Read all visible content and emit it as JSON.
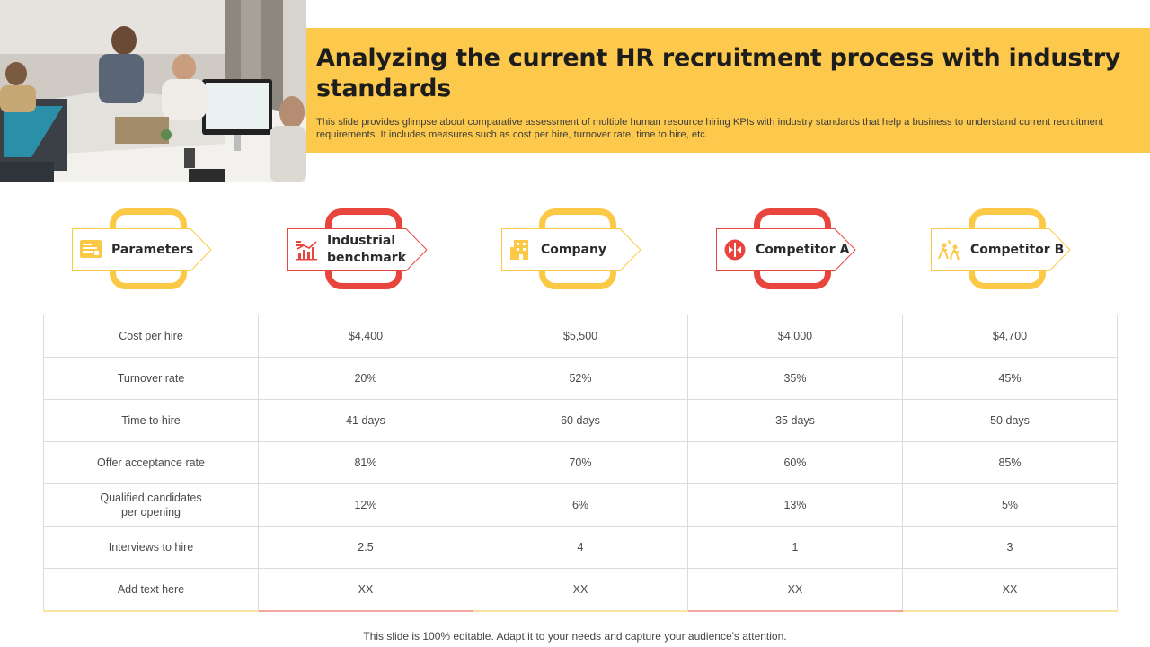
{
  "slide": {
    "title": "Analyzing the current HR recruitment process with industry standards",
    "subtitle": "This slide provides glimpse about comparative assessment of multiple human resource hiring KPIs with industry standards that help a business to understand current recruitment requirements. It includes measures such as cost per hire, turnover rate, time to hire, etc.",
    "footer": "This slide is 100% editable. Adapt it to your needs and capture your audience's attention."
  },
  "colors": {
    "accent_yellow": "#fdc94c",
    "accent_red": "#e8453c",
    "loop_yellow": "#fbc945"
  },
  "columns": [
    {
      "label": "Parameters",
      "icon": "document-list-icon",
      "color": "yellow"
    },
    {
      "label": "Industrial benchmark",
      "icon": "bar-chart-icon",
      "color": "red"
    },
    {
      "label": "Company",
      "icon": "building-icon",
      "color": "yellow"
    },
    {
      "label": "Competitor A",
      "icon": "competitor-logo-icon",
      "color": "red"
    },
    {
      "label": "Competitor B",
      "icon": "running-figures-icon",
      "color": "yellow"
    }
  ],
  "table": {
    "rows": [
      [
        "Cost per hire",
        "$4,400",
        "$5,500",
        "$4,000",
        "$4,700"
      ],
      [
        "Turnover  rate",
        "20%",
        "52%",
        "35%",
        "45%"
      ],
      [
        "Time to hire",
        "41 days",
        "60 days",
        "35 days",
        "50 days"
      ],
      [
        "Offer  acceptance rate",
        "81%",
        "70%",
        "60%",
        "85%"
      ],
      [
        "Qualified  candidates\nper opening",
        "12%",
        "6%",
        "13%",
        "5%"
      ],
      [
        "Interviews  to hire",
        "2.5",
        "4",
        "1",
        "3"
      ],
      [
        "Add text here",
        "XX",
        "XX",
        "XX",
        "XX"
      ]
    ]
  }
}
